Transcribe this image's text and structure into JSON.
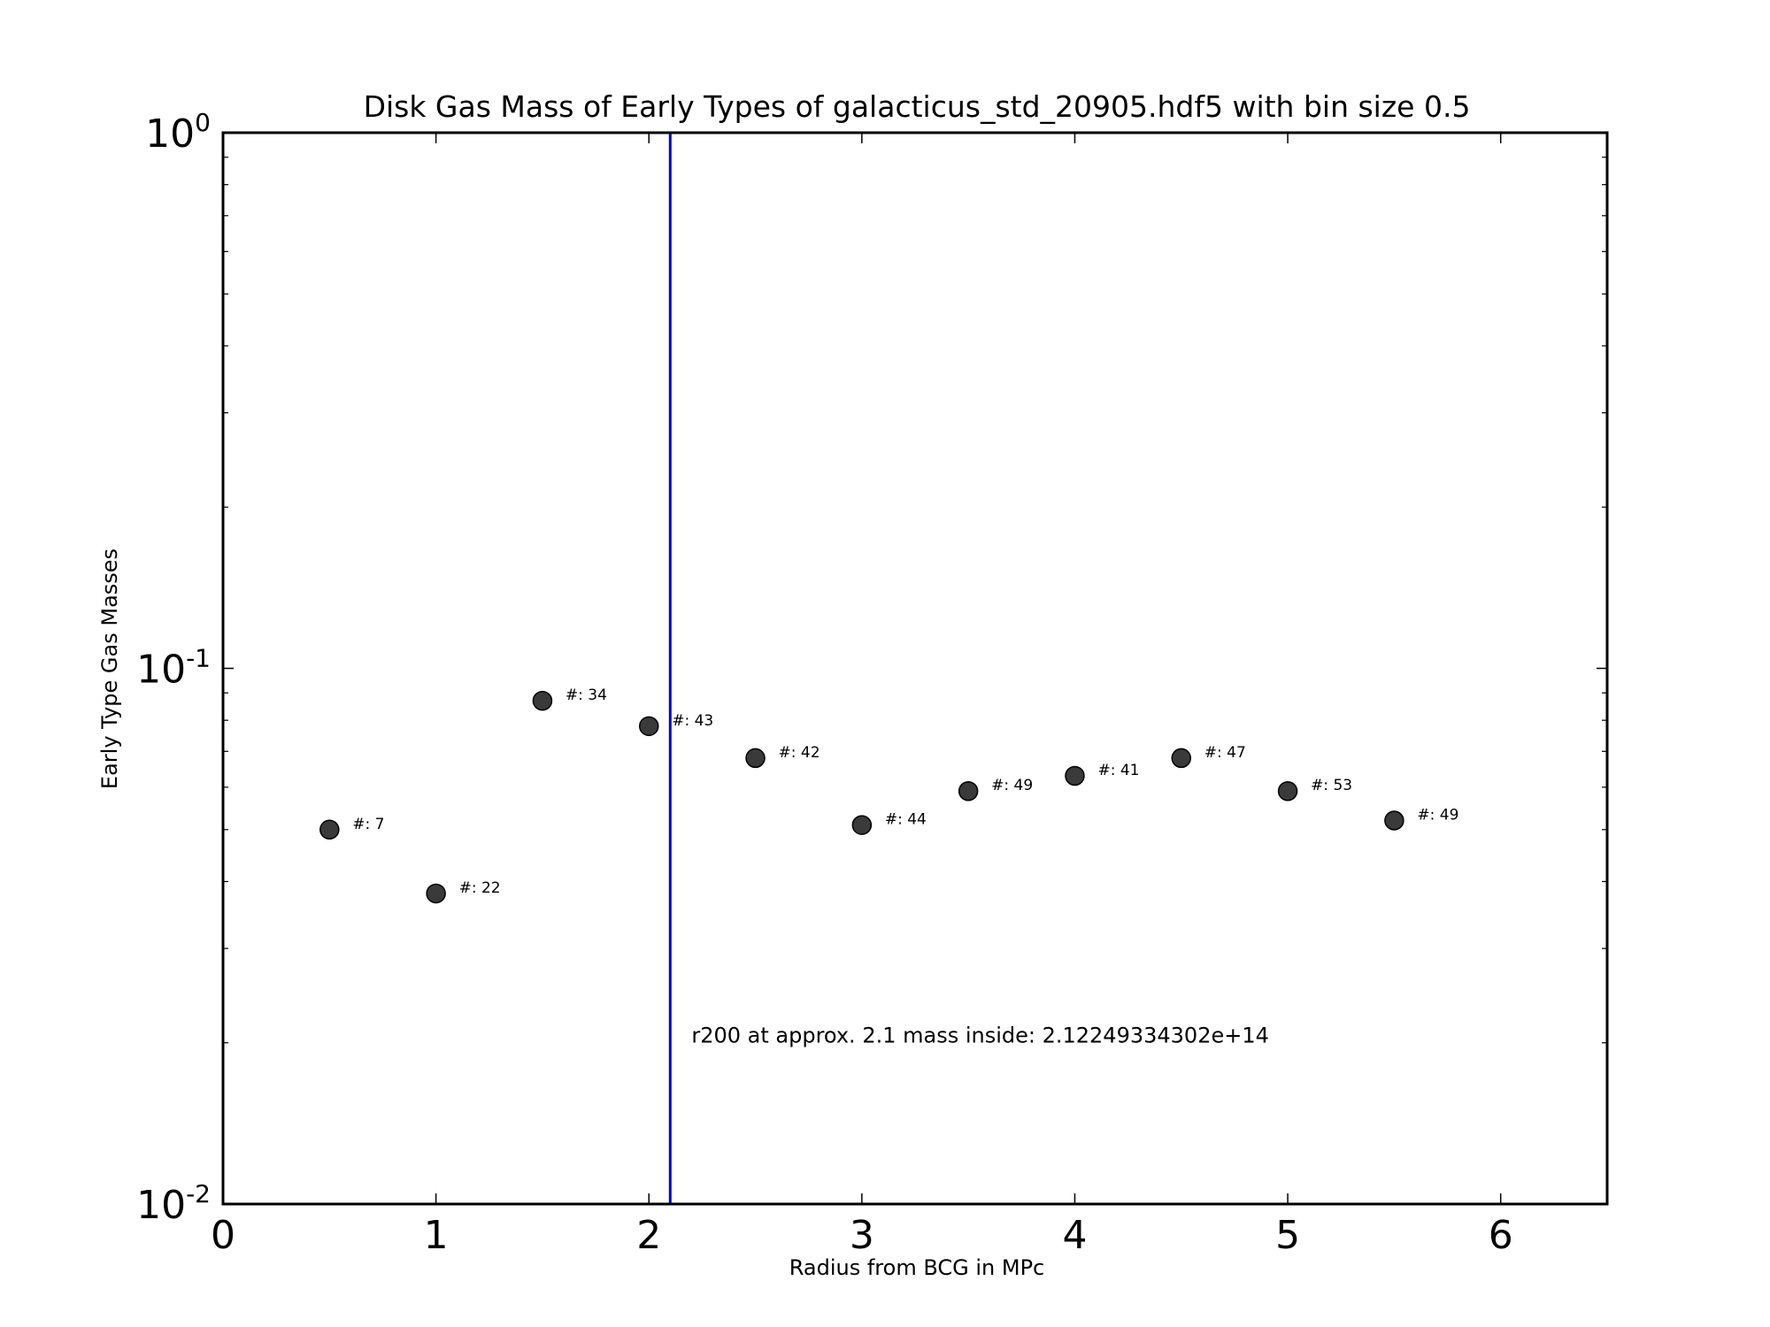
{
  "chart_data": {
    "type": "scatter",
    "title": "Disk Gas Mass of Early Types of galacticus_std_20905.hdf5 with bin size 0.5",
    "xlabel": "Radius from BCG in MPc",
    "ylabel": "Early Type Gas Masses",
    "xlim": [
      0,
      6.5
    ],
    "ylim": [
      0.01,
      1
    ],
    "yscale": "log",
    "grid": false,
    "xticks": [
      {
        "value": 0,
        "label": "0"
      },
      {
        "value": 1,
        "label": "1"
      },
      {
        "value": 2,
        "label": "2"
      },
      {
        "value": 3,
        "label": "3"
      },
      {
        "value": 4,
        "label": "4"
      },
      {
        "value": 5,
        "label": "5"
      },
      {
        "value": 6,
        "label": "6"
      }
    ],
    "yticks": [
      {
        "value": 0.01,
        "base": "10",
        "exp": "-2"
      },
      {
        "value": 0.1,
        "base": "10",
        "exp": "-1"
      },
      {
        "value": 1,
        "base": "10",
        "exp": "0"
      }
    ],
    "marker_color": "#3a3a3a",
    "line_color": "#0000cc",
    "points": [
      {
        "x": 0.5,
        "y": 0.05,
        "label": "#: 7"
      },
      {
        "x": 1.0,
        "y": 0.038,
        "label": "#: 22"
      },
      {
        "x": 1.5,
        "y": 0.087,
        "label": "#: 34"
      },
      {
        "x": 2.0,
        "y": 0.078,
        "label": "#: 43"
      },
      {
        "x": 2.5,
        "y": 0.068,
        "label": "#: 42"
      },
      {
        "x": 3.0,
        "y": 0.051,
        "label": "#: 44"
      },
      {
        "x": 3.5,
        "y": 0.059,
        "label": "#: 49"
      },
      {
        "x": 4.0,
        "y": 0.063,
        "label": "#: 41"
      },
      {
        "x": 4.5,
        "y": 0.068,
        "label": "#: 47"
      },
      {
        "x": 5.0,
        "y": 0.059,
        "label": "#: 53"
      },
      {
        "x": 5.5,
        "y": 0.052,
        "label": "#: 49"
      }
    ],
    "vline": {
      "x": 2.1
    },
    "annotation": {
      "x": 2.2,
      "y": 0.02,
      "text": "r200 at approx. 2.1 mass inside: 2.12249334302e+14"
    }
  }
}
